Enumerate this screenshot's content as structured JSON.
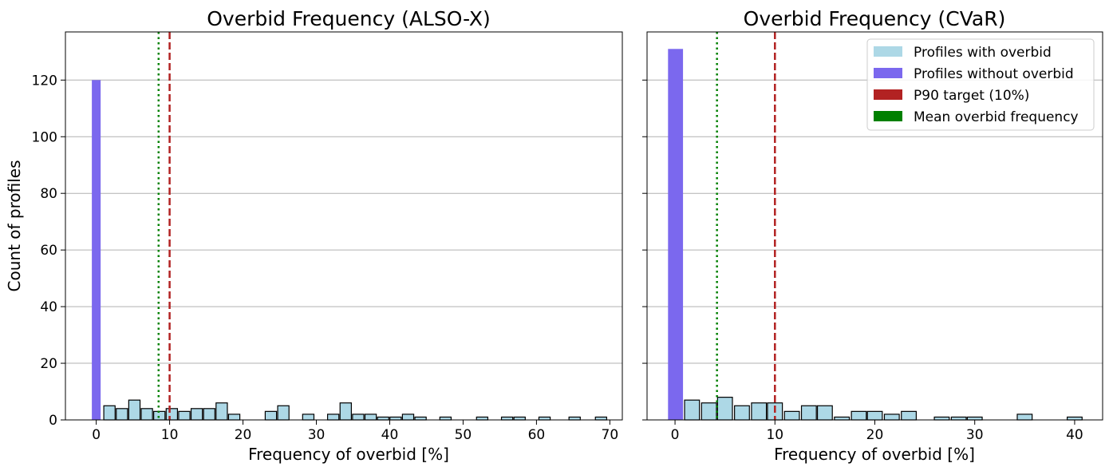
{
  "colors": {
    "with_overbid": "#add8e6",
    "without_overbid": "#7b68ee",
    "p90_line": "#b22222",
    "mean_line": "#008000",
    "grid": "#b0b0b0",
    "edge": "#000000"
  },
  "chart_data": [
    {
      "type": "bar",
      "title": "Overbid Frequency (ALSO-X)",
      "xlabel": "Frequency of overbid [%]",
      "ylabel": "Count of profiles",
      "xlim": [
        -4.2,
        71.7
      ],
      "ylim": [
        0,
        137
      ],
      "xticks": [
        "0",
        "10",
        "20",
        "30",
        "40",
        "50",
        "60",
        "70"
      ],
      "yticks": [
        "0",
        "20",
        "40",
        "60",
        "80",
        "100",
        "120"
      ],
      "grid": "y",
      "zero_bar": {
        "x0": -0.6,
        "x1": 0.6,
        "count": 120
      },
      "bin_width": 1.7,
      "bins_with_overbid": [
        {
          "x": 1.8,
          "count": 5
        },
        {
          "x": 3.5,
          "count": 4
        },
        {
          "x": 5.2,
          "count": 7
        },
        {
          "x": 6.9,
          "count": 4
        },
        {
          "x": 8.6,
          "count": 3
        },
        {
          "x": 10.3,
          "count": 4
        },
        {
          "x": 12.0,
          "count": 3
        },
        {
          "x": 13.7,
          "count": 4
        },
        {
          "x": 15.4,
          "count": 4
        },
        {
          "x": 17.1,
          "count": 6
        },
        {
          "x": 18.8,
          "count": 2
        },
        {
          "x": 23.8,
          "count": 3
        },
        {
          "x": 25.5,
          "count": 5
        },
        {
          "x": 28.9,
          "count": 2
        },
        {
          "x": 32.3,
          "count": 2
        },
        {
          "x": 34.0,
          "count": 6
        },
        {
          "x": 35.7,
          "count": 2
        },
        {
          "x": 37.4,
          "count": 2
        },
        {
          "x": 39.1,
          "count": 1
        },
        {
          "x": 40.8,
          "count": 1
        },
        {
          "x": 42.5,
          "count": 2
        },
        {
          "x": 44.2,
          "count": 1
        },
        {
          "x": 47.6,
          "count": 1
        },
        {
          "x": 52.6,
          "count": 1
        },
        {
          "x": 56.0,
          "count": 1
        },
        {
          "x": 57.7,
          "count": 1
        },
        {
          "x": 61.1,
          "count": 1
        },
        {
          "x": 65.2,
          "count": 1
        },
        {
          "x": 68.8,
          "count": 1
        }
      ],
      "p90_target": 10,
      "mean_overbid_frequency": 8.5
    },
    {
      "type": "bar",
      "title": "Overbid Frequency (CVaR)",
      "xlabel": "Frequency of overbid [%]",
      "xlim": [
        -2.8,
        42.8
      ],
      "ylim": [
        0,
        137
      ],
      "xticks": [
        "0",
        "10",
        "20",
        "30",
        "40"
      ],
      "grid": "y",
      "zero_bar": {
        "x0": -0.7,
        "x1": 0.8,
        "count": 131
      },
      "bin_width": 1.65,
      "bins_with_overbid": [
        {
          "x": 1.7,
          "count": 7
        },
        {
          "x": 3.4,
          "count": 6
        },
        {
          "x": 5.0,
          "count": 8
        },
        {
          "x": 6.7,
          "count": 5
        },
        {
          "x": 8.4,
          "count": 6
        },
        {
          "x": 10.0,
          "count": 6
        },
        {
          "x": 11.7,
          "count": 3
        },
        {
          "x": 13.4,
          "count": 5
        },
        {
          "x": 15.0,
          "count": 5
        },
        {
          "x": 16.7,
          "count": 1
        },
        {
          "x": 18.4,
          "count": 3
        },
        {
          "x": 20.0,
          "count": 3
        },
        {
          "x": 21.7,
          "count": 2
        },
        {
          "x": 23.4,
          "count": 3
        },
        {
          "x": 26.7,
          "count": 1
        },
        {
          "x": 28.4,
          "count": 1
        },
        {
          "x": 30.0,
          "count": 1
        },
        {
          "x": 35.0,
          "count": 2
        },
        {
          "x": 40.0,
          "count": 1
        }
      ],
      "p90_target": 10,
      "mean_overbid_frequency": 4.2,
      "legend": {
        "position": "top-right",
        "entries": [
          {
            "label": "Profiles with overbid",
            "color": "#add8e6"
          },
          {
            "label": "Profiles without overbid",
            "color": "#7b68ee"
          },
          {
            "label": "P90 target (10%)",
            "color": "#b22222"
          },
          {
            "label": "Mean overbid frequency",
            "color": "#008000"
          }
        ]
      }
    }
  ]
}
